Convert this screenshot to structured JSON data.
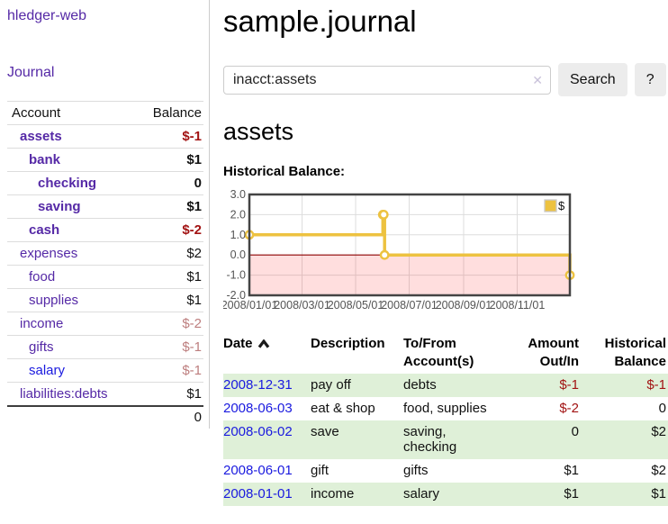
{
  "colors": {
    "accent_purple": "#5529a6",
    "link_blue": "#1a1adf",
    "negative_strong": "#a21313",
    "negative_faded": "#bd7e7e",
    "row_stripe_green": "#dff0d8",
    "chart_line": "#edc240",
    "chart_negative_fill": "#ff0000",
    "chart_zero_line": "#8b0000",
    "chart_border": "#444444",
    "chart_grid": "#dddddd",
    "chart_tick_text": "#545454"
  },
  "sidebar": {
    "brand": "hledger-web",
    "journal_label": "Journal",
    "headers": {
      "account": "Account",
      "balance": "Balance"
    },
    "accounts": [
      {
        "name": "assets",
        "indent": 0,
        "balance": "$-1",
        "bold": true,
        "balance_style": "negative_strong",
        "link_style": "purple"
      },
      {
        "name": "bank",
        "indent": 1,
        "balance": "$1",
        "bold": true,
        "balance_style": "normal",
        "link_style": "purple"
      },
      {
        "name": "checking",
        "indent": 2,
        "balance": "0",
        "bold": true,
        "balance_style": "normal",
        "link_style": "purple"
      },
      {
        "name": "saving",
        "indent": 2,
        "balance": "$1",
        "bold": true,
        "balance_style": "normal",
        "link_style": "purple"
      },
      {
        "name": "cash",
        "indent": 1,
        "balance": "$-2",
        "bold": true,
        "balance_style": "negative_strong",
        "link_style": "purple"
      },
      {
        "name": "expenses",
        "indent": 0,
        "balance": "$2",
        "bold": false,
        "balance_style": "normal",
        "link_style": "purple"
      },
      {
        "name": "food",
        "indent": 1,
        "balance": "$1",
        "bold": false,
        "balance_style": "normal",
        "link_style": "purple"
      },
      {
        "name": "supplies",
        "indent": 1,
        "balance": "$1",
        "bold": false,
        "balance_style": "normal",
        "link_style": "purple"
      },
      {
        "name": "income",
        "indent": 0,
        "balance": "$-2",
        "bold": false,
        "balance_style": "negative_faded",
        "link_style": "purple"
      },
      {
        "name": "gifts",
        "indent": 1,
        "balance": "$-1",
        "bold": false,
        "balance_style": "negative_faded",
        "link_style": "purple"
      },
      {
        "name": "salary",
        "indent": 1,
        "balance": "$-1",
        "bold": false,
        "balance_style": "negative_faded",
        "link_style": "blue"
      },
      {
        "name": "liabilities:debts",
        "indent": 0,
        "balance": "$1",
        "bold": false,
        "balance_style": "normal",
        "link_style": "purple"
      }
    ],
    "total": "0"
  },
  "main": {
    "title": "sample.journal",
    "search": {
      "value": "inacct:assets",
      "clear_icon": "✕",
      "button_label": "Search",
      "help_label": "?"
    },
    "account_heading": "assets",
    "chart_heading": "Historical Balance:"
  },
  "chart_data": {
    "type": "line",
    "step": true,
    "title": "Historical Balance:",
    "x_type": "date",
    "xlim": [
      "2008-01-01",
      "2008-12-31"
    ],
    "ylim": [
      -2,
      3
    ],
    "yticks": [
      {
        "value": 3,
        "label": "3.0"
      },
      {
        "value": 2,
        "label": "2.0"
      },
      {
        "value": 1,
        "label": "1.0"
      },
      {
        "value": 0,
        "label": "0.0"
      },
      {
        "value": -1,
        "label": "-1.0"
      },
      {
        "value": -2,
        "label": "-2.0"
      }
    ],
    "xticks": [
      {
        "date": "2008-01-01",
        "label": "2008/01/01"
      },
      {
        "date": "2008-03-01",
        "label": "2008/03/01"
      },
      {
        "date": "2008-05-01",
        "label": "2008/05/01"
      },
      {
        "date": "2008-07-01",
        "label": "2008/07/01"
      },
      {
        "date": "2008-09-01",
        "label": "2008/09/01"
      },
      {
        "date": "2008-11-01",
        "label": "2008/11/01"
      }
    ],
    "series": [
      {
        "name": "$",
        "color": "#edc240",
        "points": [
          {
            "date": "2008-01-01",
            "value": 1
          },
          {
            "date": "2008-06-01",
            "value": 2
          },
          {
            "date": "2008-06-02",
            "value": 2
          },
          {
            "date": "2008-06-03",
            "value": 0
          },
          {
            "date": "2008-12-31",
            "value": -1
          }
        ]
      }
    ],
    "legend": {
      "label": "$",
      "position": "top-right"
    },
    "negative_region_shaded": true,
    "grid": true
  },
  "register": {
    "headers": {
      "date": "Date",
      "description": "Description",
      "accounts": "To/From Account(s)",
      "amount": "Amount Out/In",
      "balance": "Historical Balance"
    },
    "sort": {
      "column": "date",
      "direction": "ascending"
    },
    "rows": [
      {
        "date": "2008-12-31",
        "description": "pay off",
        "accounts": "debts",
        "amount": "$-1",
        "amount_negative": true,
        "balance": "$-1",
        "balance_negative": true,
        "shaded": true
      },
      {
        "date": "2008-06-03",
        "description": "eat & shop",
        "accounts": "food, supplies",
        "amount": "$-2",
        "amount_negative": true,
        "balance": "0",
        "balance_negative": false,
        "shaded": false
      },
      {
        "date": "2008-06-02",
        "description": "save",
        "accounts": "saving,\nchecking",
        "amount": "0",
        "amount_negative": false,
        "balance": "$2",
        "balance_negative": false,
        "shaded": true
      },
      {
        "date": "2008-06-01",
        "description": "gift",
        "accounts": "gifts",
        "amount": "$1",
        "amount_negative": false,
        "balance": "$2",
        "balance_negative": false,
        "shaded": false
      },
      {
        "date": "2008-01-01",
        "description": "income",
        "accounts": "salary",
        "amount": "$1",
        "amount_negative": false,
        "balance": "$1",
        "balance_negative": false,
        "shaded": true
      }
    ]
  }
}
